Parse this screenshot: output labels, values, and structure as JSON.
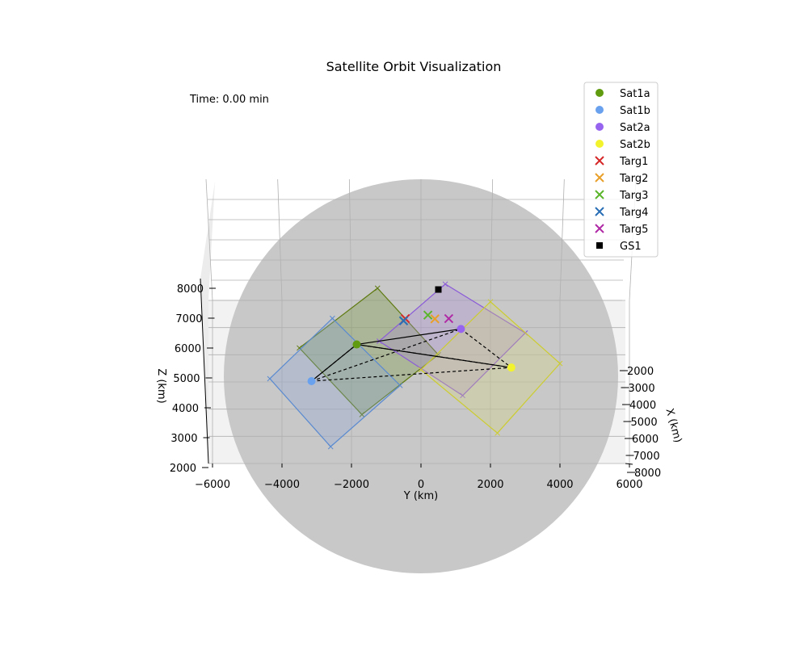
{
  "chart_data": {
    "type": "scatter",
    "projection": "3d",
    "title": "Satellite Orbit Visualization",
    "time_label": "Time: 0.00 min",
    "xlabel": "Y (km)",
    "ylabel": "Z (km)",
    "zlabel": "X (km)",
    "y_axis": {
      "ticks": [
        "−6000",
        "−4000",
        "−2000",
        "0",
        "2000",
        "4000",
        "6000"
      ],
      "range": [
        -6000,
        6000
      ]
    },
    "z_axis": {
      "ticks": [
        "2000",
        "3000",
        "4000",
        "5000",
        "6000",
        "7000",
        "8000"
      ],
      "range": [
        2000,
        8000
      ]
    },
    "x_axis": {
      "ticks": [
        "2000",
        "3000",
        "4000",
        "5000",
        "6000",
        "7000",
        "8000"
      ],
      "range": [
        2000,
        8000
      ]
    },
    "grid": true,
    "legend_position": "top-right",
    "earth_color": "#c8c8c8",
    "series": [
      {
        "name": "Sat1a",
        "marker": "circle",
        "color": "#5f9a0f",
        "y": -1850,
        "z": 6380
      },
      {
        "name": "Sat1b",
        "marker": "circle",
        "color": "#6aa1ee",
        "y": -3150,
        "z": 5030
      },
      {
        "name": "Sat2a",
        "marker": "circle",
        "color": "#9664ee",
        "y": 1150,
        "z": 6950
      },
      {
        "name": "Sat2b",
        "marker": "circle",
        "color": "#f3f32d",
        "y": 2600,
        "z": 5530
      },
      {
        "name": "Targ1",
        "marker": "x",
        "color": "#d62728",
        "y": -450,
        "z": 7330
      },
      {
        "name": "Targ2",
        "marker": "x",
        "color": "#e8a02a",
        "y": 400,
        "z": 7320
      },
      {
        "name": "Targ3",
        "marker": "x",
        "color": "#5ab52a",
        "y": 200,
        "z": 7460
      },
      {
        "name": "Targ4",
        "marker": "x",
        "color": "#2a6fb5",
        "y": -500,
        "z": 7250
      },
      {
        "name": "Targ5",
        "marker": "x",
        "color": "#b02aa6",
        "y": 800,
        "z": 7330
      },
      {
        "name": "GS1",
        "marker": "square",
        "color": "#000000",
        "y": 500,
        "z": 8400
      }
    ],
    "coverage_footprints": [
      {
        "satellite": "Sat1a",
        "edge_color": "#5f7a10",
        "fill": "#6a8a2a",
        "corners": [
          [
            -1250,
            8450
          ],
          [
            500,
            6000
          ],
          [
            -1700,
            3800
          ],
          [
            -3500,
            6250
          ]
        ]
      },
      {
        "satellite": "Sat1b",
        "edge_color": "#5a8ad0",
        "fill": "#8aa6d8",
        "corners": [
          [
            -2550,
            7340
          ],
          [
            -600,
            4870
          ],
          [
            -2600,
            2620
          ],
          [
            -4350,
            5120
          ]
        ]
      },
      {
        "satellite": "Sat2a",
        "edge_color": "#8a5ad8",
        "fill": "#a88ad8",
        "corners": [
          [
            700,
            8600
          ],
          [
            3000,
            6800
          ],
          [
            1200,
            4500
          ],
          [
            -1200,
            6500
          ]
        ]
      },
      {
        "satellite": "Sat2b",
        "edge_color": "#cccc30",
        "fill": "#d8d87a",
        "corners": [
          [
            2000,
            7950
          ],
          [
            4000,
            5680
          ],
          [
            2200,
            3120
          ],
          [
            0,
            5450
          ]
        ]
      }
    ],
    "links": [
      {
        "from": "Sat1a",
        "to": "Sat2a",
        "style": "solid"
      },
      {
        "from": "Sat1a",
        "to": "Sat2b",
        "style": "solid"
      },
      {
        "from": "Sat1a",
        "to": "Sat1b",
        "style": "solid"
      },
      {
        "from": "Sat1b",
        "to": "Sat2a",
        "style": "dashed"
      },
      {
        "from": "Sat1b",
        "to": "Sat2b",
        "style": "dashed"
      },
      {
        "from": "Sat2a",
        "to": "Sat2b",
        "style": "dashed"
      },
      {
        "from": "Sat1a",
        "to": "Sat2b",
        "style": "dashed"
      },
      {
        "from": "Sat1b",
        "to": "Sat1a",
        "style": "dashed"
      }
    ]
  }
}
